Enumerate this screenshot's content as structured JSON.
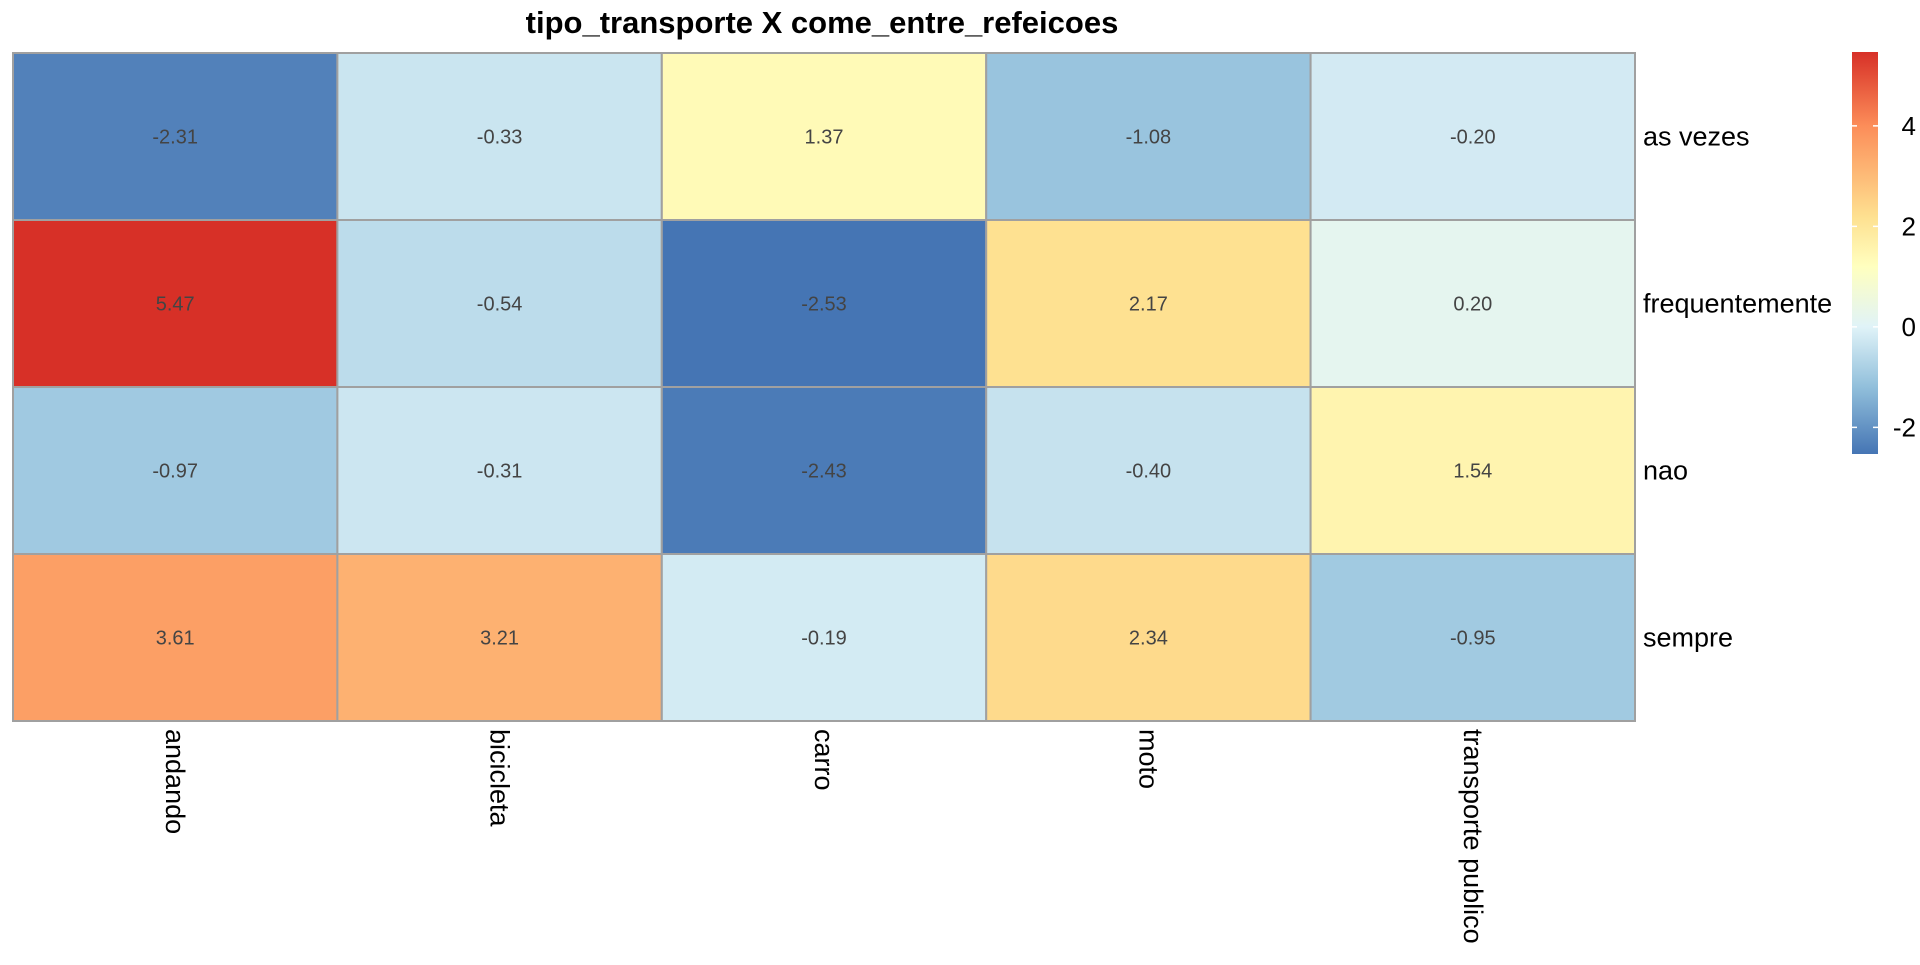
{
  "chart_data": {
    "type": "heatmap",
    "title": "tipo_transporte X come_entre_refeicoes",
    "columns": [
      "andando",
      "bicicleta",
      "carro",
      "moto",
      "transporte publico"
    ],
    "rows": [
      "as vezes",
      "frequentemente",
      "nao",
      "sempre"
    ],
    "values": [
      [
        -2.31,
        -0.33,
        1.37,
        -1.08,
        -0.2
      ],
      [
        5.47,
        -0.54,
        -2.53,
        2.17,
        0.2
      ],
      [
        -0.97,
        -0.31,
        -2.43,
        -0.4,
        1.54
      ],
      [
        3.61,
        3.21,
        -0.19,
        2.34,
        -0.95
      ]
    ],
    "cell_labels": [
      [
        "-2.31",
        "-0.33",
        "1.37",
        "-1.08",
        "-0.20"
      ],
      [
        "5.47",
        "-0.54",
        "-2.53",
        "2.17",
        "0.20"
      ],
      [
        "-0.97",
        "-0.31",
        "-2.43",
        "-0.40",
        "1.54"
      ],
      [
        "3.61",
        "3.21",
        "-0.19",
        "2.34",
        "-0.95"
      ]
    ],
    "legend": {
      "placement": "top-right",
      "range": [
        -2.53,
        5.47
      ],
      "ticks": [
        4,
        2,
        0,
        -2
      ],
      "tick_labels": [
        "4",
        "2",
        "0",
        "-2"
      ],
      "color_stops": [
        "#4575b4",
        "#91bfdb",
        "#e0f3f8",
        "#ffffbf",
        "#fee090",
        "#fc8d59",
        "#d73027"
      ],
      "color_values": [
        -2.53,
        -1.2,
        0,
        1.2,
        2.2,
        4.0,
        5.47
      ]
    },
    "cell_border_color": "#a0a0a0",
    "grid": false
  }
}
